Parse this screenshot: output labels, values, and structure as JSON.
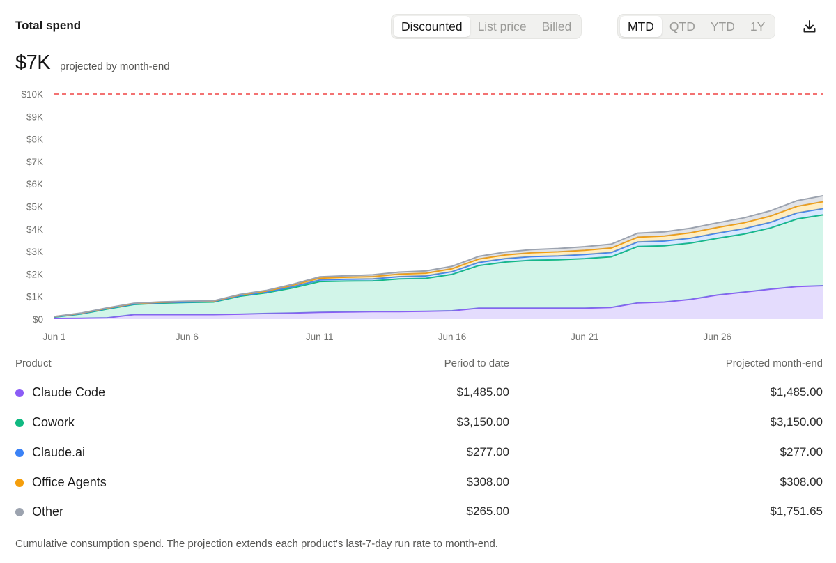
{
  "header": {
    "title": "Total spend"
  },
  "basis_toggle": {
    "options": [
      "Discounted",
      "List price",
      "Billed"
    ],
    "selected": "Discounted"
  },
  "range_toggle": {
    "options": [
      "MTD",
      "QTD",
      "YTD",
      "1Y"
    ],
    "selected": "MTD"
  },
  "download": {
    "icon": "download-icon"
  },
  "projection": {
    "value": "$7K",
    "caption": "projected by month-end"
  },
  "colors": {
    "claude_code": "#8b5cf6",
    "cowork": "#10b981",
    "claude_ai": "#3b82f6",
    "office_agents": "#f59e0b",
    "other": "#9ca3af",
    "budget_line": "#ef4444"
  },
  "chart_data": {
    "type": "area",
    "stacked": true,
    "budget_line": 10000,
    "ylim": [
      0,
      10000
    ],
    "y_ticks": [
      "$0",
      "$1K",
      "$2K",
      "$3K",
      "$4K",
      "$5K",
      "$6K",
      "$7K",
      "$8K",
      "$9K",
      "$10K"
    ],
    "x": [
      1,
      2,
      3,
      4,
      5,
      6,
      7,
      8,
      9,
      10,
      11,
      12,
      13,
      14,
      15,
      16,
      17,
      18,
      19,
      20,
      21,
      22,
      23,
      24,
      25,
      26,
      27,
      28,
      29,
      30
    ],
    "x_ticks": [
      "Jun 1",
      "Jun 6",
      "Jun 11",
      "Jun 16",
      "Jun 21",
      "Jun 26"
    ],
    "series": [
      {
        "name": "Claude Code",
        "values": [
          30,
          40,
          60,
          200,
          200,
          200,
          200,
          220,
          250,
          270,
          300,
          320,
          330,
          330,
          350,
          370,
          490,
          490,
          490,
          490,
          490,
          520,
          720,
          760,
          880,
          1070,
          1200,
          1330,
          1450,
          1485
        ]
      },
      {
        "name": "Cowork",
        "values": [
          60,
          190,
          390,
          450,
          510,
          540,
          560,
          800,
          920,
          1120,
          1370,
          1370,
          1370,
          1460,
          1460,
          1620,
          1890,
          2050,
          2130,
          2150,
          2200,
          2250,
          2510,
          2500,
          2500,
          2520,
          2580,
          2720,
          3000,
          3150
        ]
      },
      {
        "name": "Claude.ai",
        "values": [
          10,
          15,
          20,
          20,
          20,
          20,
          20,
          30,
          40,
          60,
          70,
          80,
          90,
          100,
          110,
          120,
          140,
          150,
          160,
          170,
          180,
          190,
          200,
          210,
          220,
          230,
          240,
          250,
          265,
          277
        ]
      },
      {
        "name": "Office Agents",
        "values": [
          10,
          15,
          20,
          20,
          20,
          20,
          20,
          30,
          40,
          60,
          80,
          90,
          100,
          110,
          120,
          130,
          150,
          160,
          170,
          180,
          190,
          200,
          210,
          220,
          240,
          250,
          260,
          280,
          295,
          308
        ]
      },
      {
        "name": "Other",
        "values": [
          5,
          10,
          15,
          15,
          15,
          15,
          15,
          20,
          30,
          40,
          60,
          70,
          80,
          90,
          100,
          110,
          120,
          130,
          140,
          150,
          160,
          170,
          180,
          190,
          200,
          210,
          220,
          235,
          250,
          265
        ]
      }
    ]
  },
  "table": {
    "headers": {
      "product": "Product",
      "period": "Period to date",
      "projected": "Projected month-end"
    },
    "rows": [
      {
        "product": "Claude Code",
        "period": "$1,485.00",
        "projected": "$1,485.00"
      },
      {
        "product": "Cowork",
        "period": "$3,150.00",
        "projected": "$3,150.00"
      },
      {
        "product": "Claude.ai",
        "period": "$277.00",
        "projected": "$277.00"
      },
      {
        "product": "Office Agents",
        "period": "$308.00",
        "projected": "$308.00"
      },
      {
        "product": "Other",
        "period": "$265.00",
        "projected": "$1,751.65"
      }
    ]
  },
  "footnote": "Cumulative consumption spend. The projection extends each product's last-7-day run rate to month-end."
}
